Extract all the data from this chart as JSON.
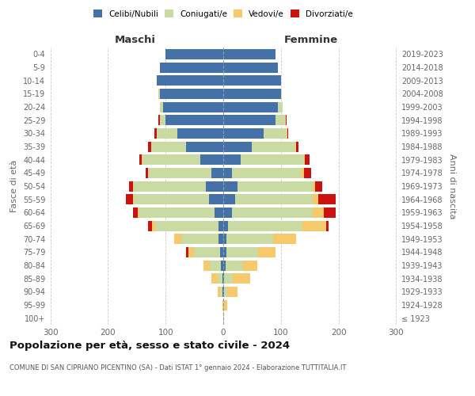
{
  "age_groups": [
    "100+",
    "95-99",
    "90-94",
    "85-89",
    "80-84",
    "75-79",
    "70-74",
    "65-69",
    "60-64",
    "55-59",
    "50-54",
    "45-49",
    "40-44",
    "35-39",
    "30-34",
    "25-29",
    "20-24",
    "15-19",
    "10-14",
    "5-9",
    "0-4"
  ],
  "birth_years": [
    "≤ 1923",
    "1924-1928",
    "1929-1933",
    "1934-1938",
    "1939-1943",
    "1944-1948",
    "1949-1953",
    "1954-1958",
    "1959-1963",
    "1964-1968",
    "1969-1973",
    "1974-1978",
    "1979-1983",
    "1984-1988",
    "1989-1993",
    "1994-1998",
    "1999-2003",
    "2004-2008",
    "2009-2013",
    "2014-2018",
    "2019-2023"
  ],
  "maschi": {
    "celibi": [
      0,
      0,
      2,
      2,
      4,
      6,
      8,
      8,
      15,
      25,
      30,
      20,
      40,
      65,
      80,
      100,
      105,
      110,
      115,
      110,
      100
    ],
    "coniugati": [
      0,
      0,
      3,
      8,
      20,
      45,
      65,
      110,
      130,
      130,
      125,
      110,
      100,
      60,
      35,
      10,
      5,
      2,
      0,
      0,
      0
    ],
    "vedovi": [
      0,
      2,
      5,
      10,
      10,
      10,
      12,
      5,
      3,
      2,
      1,
      0,
      1,
      0,
      0,
      0,
      0,
      0,
      0,
      0,
      0
    ],
    "divorziati": [
      0,
      0,
      0,
      0,
      0,
      3,
      0,
      8,
      8,
      12,
      8,
      5,
      5,
      5,
      5,
      2,
      0,
      0,
      0,
      0,
      0
    ]
  },
  "femmine": {
    "nubili": [
      0,
      0,
      2,
      2,
      4,
      5,
      6,
      8,
      15,
      20,
      25,
      15,
      30,
      50,
      70,
      90,
      95,
      100,
      100,
      95,
      90
    ],
    "coniugate": [
      0,
      2,
      5,
      15,
      30,
      55,
      80,
      130,
      140,
      135,
      130,
      120,
      110,
      75,
      40,
      18,
      8,
      2,
      0,
      0,
      0
    ],
    "vedove": [
      2,
      5,
      18,
      30,
      25,
      30,
      40,
      40,
      20,
      10,
      5,
      5,
      2,
      1,
      1,
      0,
      0,
      0,
      0,
      0,
      0
    ],
    "divorziate": [
      0,
      0,
      0,
      0,
      0,
      0,
      0,
      5,
      20,
      30,
      12,
      12,
      8,
      5,
      2,
      2,
      0,
      0,
      0,
      0,
      0
    ]
  },
  "colors": {
    "celibi": "#4472a8",
    "coniugati": "#c9dba3",
    "vedovi": "#f5c96c",
    "divorziati": "#cc1111"
  },
  "title": "Popolazione per età, sesso e stato civile - 2024",
  "subtitle": "COMUNE DI SAN CIPRIANO PICENTINO (SA) - Dati ISTAT 1° gennaio 2024 - Elaborazione TUTTITALIA.IT",
  "xlabel_left": "Maschi",
  "xlabel_right": "Femmine",
  "ylabel_left": "Fasce di età",
  "ylabel_right": "Anni di nascita",
  "xlim": 305,
  "bg_color": "#ffffff",
  "grid_color": "#cccccc",
  "legend_labels": [
    "Celibi/Nubili",
    "Coniugati/e",
    "Vedovi/e",
    "Divorziati/e"
  ]
}
